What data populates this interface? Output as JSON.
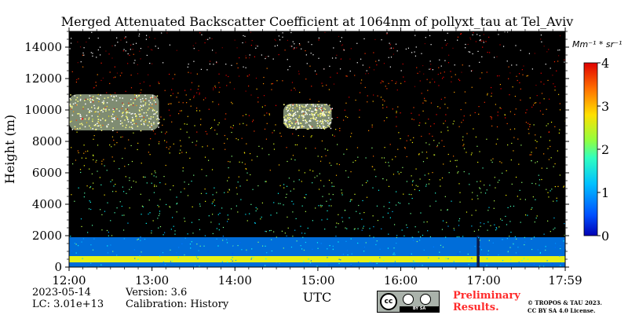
{
  "chart_data": {
    "type": "heatmap",
    "title": "Merged Attenuated Backscatter Coefficient at 1064nm of pollyxt_tau at Tel_Aviv",
    "ylabel": "Height (m)",
    "xlabel": "UTC",
    "x_ticks": [
      "12:00",
      "13:00",
      "14:00",
      "15:00",
      "16:00",
      "17:00",
      "17:59"
    ],
    "y_ticks": [
      0,
      2000,
      4000,
      6000,
      8000,
      10000,
      12000,
      14000
    ],
    "ylim": [
      0,
      15000
    ],
    "xlim_hours": [
      12.0,
      17.983
    ],
    "colorbar": {
      "unit_label": "Mm⁻¹ * sr⁻¹",
      "range": [
        0,
        4
      ],
      "ticks": [
        0,
        1,
        2,
        3,
        4
      ],
      "colormap": "jet"
    },
    "features": [
      {
        "kind": "aerosol_layer",
        "height_range_m": [
          0,
          1900
        ],
        "time_range": [
          "12:00",
          "17:59"
        ],
        "value": 1.0
      },
      {
        "kind": "dense_near_surface_layer",
        "height_range_m": [
          300,
          700
        ],
        "time_range": [
          "12:00",
          "17:59"
        ],
        "value": 2.5
      },
      {
        "kind": "cloud",
        "height_range_m": [
          8700,
          11000
        ],
        "time_range": [
          "12:00",
          "13:05"
        ],
        "value": 4.0
      },
      {
        "kind": "cloud",
        "height_range_m": [
          8800,
          10400
        ],
        "time_range": [
          "14:35",
          "15:10"
        ],
        "value": 4.0
      },
      {
        "kind": "signal_gap",
        "height_range_m": [
          0,
          2000
        ],
        "time_range": [
          "16:55",
          "16:57"
        ],
        "value": 0.0
      }
    ]
  },
  "info": {
    "date": "2023-05-14",
    "lc": "LC: 3.01e+13",
    "version": "Version: 3.6",
    "calibration": "Calibration: History",
    "preliminary_line1": "Preliminary",
    "preliminary_line2": "Results.",
    "copyright_line1": "© TROPOS & TAU 2023.",
    "copyright_line2": "CC BY SA 4.0 License.",
    "license_badge": {
      "cc": "cc",
      "bar": "BY SA"
    }
  },
  "colors": {
    "plot_background": "#000000",
    "preliminary_text": "#ff2a2a",
    "frame": "#000000"
  }
}
